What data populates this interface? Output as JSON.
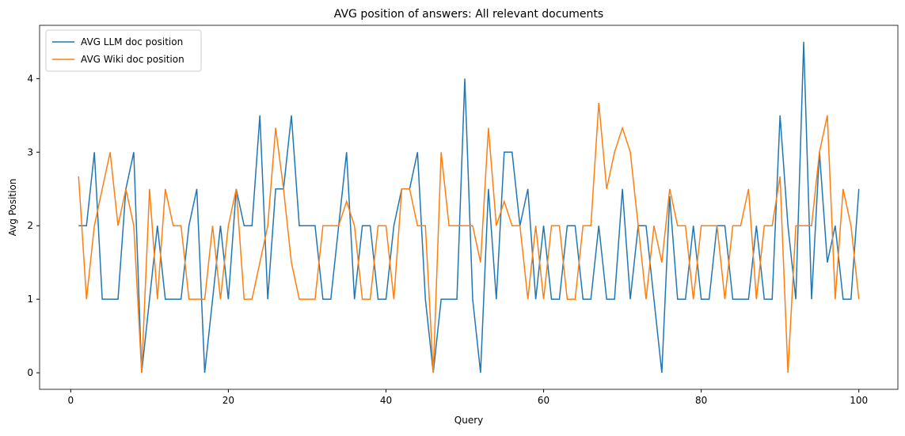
{
  "chart_data": {
    "type": "line",
    "title": "AVG position of answers: All relevant documents",
    "xlabel": "Query",
    "ylabel": "Avg Position",
    "x": [
      1,
      2,
      3,
      4,
      5,
      6,
      7,
      8,
      9,
      10,
      11,
      12,
      13,
      14,
      15,
      16,
      17,
      18,
      19,
      20,
      21,
      22,
      23,
      24,
      25,
      26,
      27,
      28,
      29,
      30,
      31,
      32,
      33,
      34,
      35,
      36,
      37,
      38,
      39,
      40,
      41,
      42,
      43,
      44,
      45,
      46,
      47,
      48,
      49,
      50,
      51,
      52,
      53,
      54,
      55,
      56,
      57,
      58,
      59,
      60,
      61,
      62,
      63,
      64,
      65,
      66,
      67,
      68,
      69,
      70,
      71,
      72,
      73,
      74,
      75,
      76,
      77,
      78,
      79,
      80,
      81,
      82,
      83,
      84,
      85,
      86,
      87,
      88,
      89,
      90,
      91,
      92,
      93,
      94,
      95,
      96,
      97,
      98,
      99,
      100
    ],
    "series": [
      {
        "name": "AVG LLM doc position",
        "color": "#1f77b4",
        "values": [
          2,
          2,
          3,
          1,
          1,
          1,
          2.5,
          3,
          0,
          1,
          2,
          1,
          1,
          1,
          2,
          2.5,
          0,
          1,
          2,
          1,
          2.5,
          2,
          2,
          3.5,
          1,
          2.5,
          2.5,
          3.5,
          2,
          2,
          2,
          1,
          1,
          2,
          3,
          1,
          2,
          2,
          1,
          1,
          2,
          2.5,
          2.5,
          3,
          1,
          0,
          1,
          1,
          1,
          4,
          1,
          0,
          2.5,
          1,
          3,
          3,
          2,
          2.5,
          1,
          2,
          1,
          1,
          2,
          2,
          1,
          1,
          2,
          1,
          1,
          2.5,
          1,
          2,
          2,
          1,
          0,
          2.4,
          1,
          1,
          2,
          1,
          1,
          2,
          2,
          1,
          1,
          1,
          2,
          1,
          1,
          3.5,
          2,
          1,
          4.5,
          1,
          3,
          1.5,
          2,
          1,
          1,
          2.5
        ]
      },
      {
        "name": "AVG Wiki doc position",
        "color": "#ff7f0e",
        "values": [
          2.67,
          1,
          2,
          2.5,
          3,
          2,
          2.5,
          2,
          0,
          2.5,
          1,
          2.5,
          2,
          2,
          1,
          1,
          1,
          2,
          1,
          2,
          2.5,
          1,
          1,
          1.5,
          2,
          3.33,
          2.5,
          1.5,
          1,
          1,
          1,
          2,
          2,
          2,
          2.33,
          2,
          1,
          1,
          2,
          2,
          1,
          2.5,
          2.5,
          2,
          2,
          0,
          3,
          2,
          2,
          2,
          2,
          1.5,
          3.33,
          2,
          2.33,
          2,
          2,
          1,
          2,
          1,
          2,
          2,
          1,
          1,
          2,
          2,
          3.67,
          2.5,
          3,
          3.33,
          3,
          2,
          1,
          2,
          1.5,
          2.5,
          2,
          2,
          1,
          2,
          2,
          2,
          1,
          2,
          2,
          2.5,
          1,
          2,
          2,
          2.67,
          0,
          2,
          2,
          2,
          3,
          3.5,
          1,
          2.5,
          2,
          1
        ]
      }
    ],
    "xlim": [
      -3.95,
      104.95
    ],
    "ylim": [
      -0.225,
      4.725
    ],
    "xticks": [
      0,
      20,
      40,
      60,
      80,
      100
    ],
    "yticks": [
      0,
      1,
      2,
      3,
      4
    ],
    "legend": "upper left"
  }
}
